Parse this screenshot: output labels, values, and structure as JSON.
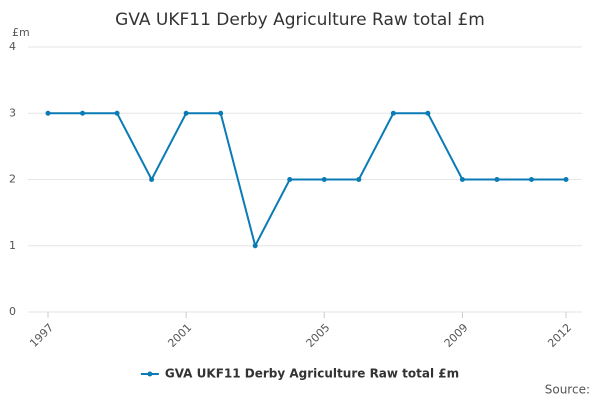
{
  "chart_data": {
    "type": "line",
    "title": "GVA UKF11 Derby Agriculture Raw total £m",
    "y_label": "£m",
    "source": "Source:",
    "x": [
      1997,
      1998,
      1999,
      2000,
      2001,
      2002,
      2003,
      2004,
      2005,
      2006,
      2007,
      2008,
      2009,
      2010,
      2011,
      2012
    ],
    "series": [
      {
        "name": "GVA UKF11 Derby Agriculture Raw total £m",
        "color": "#0b7bb5",
        "values": [
          3,
          3,
          3,
          2,
          3,
          3,
          1,
          2,
          2,
          2,
          3,
          3,
          2,
          2,
          2,
          2
        ]
      }
    ],
    "xlim": [
      1997,
      2012
    ],
    "xticks": [
      1997,
      2001,
      2005,
      2009,
      2012
    ],
    "ylim": [
      0,
      4
    ],
    "yticks": [
      0,
      1,
      2,
      3,
      4
    ],
    "grid": true
  }
}
